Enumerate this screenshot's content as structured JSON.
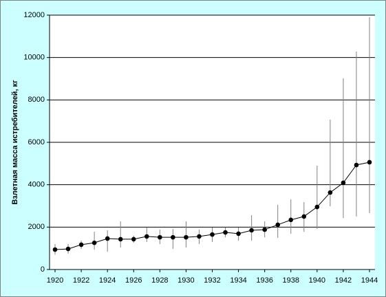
{
  "chart_data": {
    "type": "line",
    "y_label": "Взлетная масса истребителей, кг",
    "x": [
      1920,
      1921,
      1922,
      1923,
      1924,
      1925,
      1926,
      1927,
      1928,
      1929,
      1930,
      1931,
      1932,
      1933,
      1934,
      1935,
      1936,
      1937,
      1938,
      1939,
      1940,
      1941,
      1942,
      1943,
      1944
    ],
    "series": [
      {
        "color": "#000000",
        "error_color": "#808080",
        "values": [
          940,
          970,
          1170,
          1260,
          1460,
          1430,
          1430,
          1560,
          1520,
          1520,
          1520,
          1560,
          1650,
          1750,
          1690,
          1850,
          1880,
          2110,
          2340,
          2500,
          2950,
          3630,
          4090,
          4930,
          5060
        ],
        "low": [
          700,
          750,
          970,
          940,
          840,
          1040,
          1260,
          1300,
          1200,
          970,
          1040,
          1200,
          1300,
          1520,
          1360,
          1360,
          1520,
          1490,
          1690,
          1780,
          1910,
          2980,
          2430,
          2500,
          2660
        ],
        "high": [
          1200,
          1200,
          1360,
          1780,
          1850,
          2270,
          1590,
          1980,
          1880,
          1910,
          2270,
          1880,
          1980,
          1980,
          1980,
          2560,
          2270,
          3050,
          3310,
          3180,
          4900,
          7070,
          9020,
          10280,
          11900
        ]
      }
    ],
    "xlim": [
      1919.58,
      1944.42
    ],
    "xticks": [
      1920,
      1922,
      1924,
      1926,
      1928,
      1930,
      1932,
      1934,
      1936,
      1938,
      1940,
      1942,
      1944
    ],
    "ylim": [
      0,
      12000
    ],
    "yticks": [
      0,
      2000,
      4000,
      6000,
      8000,
      10000,
      12000
    ],
    "grid": true
  }
}
